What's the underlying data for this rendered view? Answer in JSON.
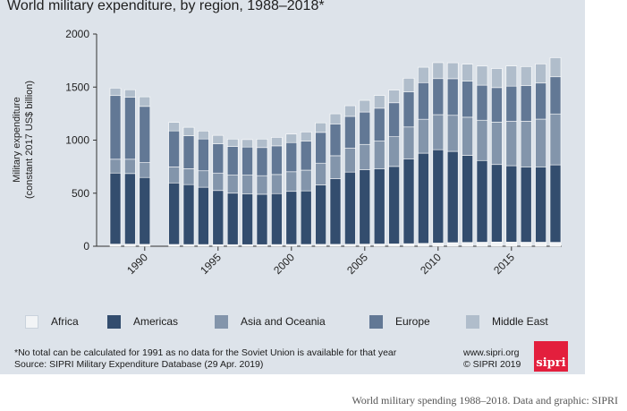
{
  "chart_data": {
    "type": "bar",
    "stacked": true,
    "title": "World military expenditure, by region, 1988–2018*",
    "ylabel_line1": "Military expenditure",
    "ylabel_line2": "(constant 2017 US$ billion)",
    "xlabel": "",
    "ylim": [
      0,
      2000
    ],
    "yticks": [
      0,
      500,
      1000,
      1500,
      2000
    ],
    "ytick_labels": [
      "0",
      "500",
      "1000",
      "1500",
      "2000"
    ],
    "xticks": [
      1990,
      1995,
      2000,
      2005,
      2010,
      2015
    ],
    "xtick_labels": [
      "1990",
      "1995",
      "2000",
      "2005",
      "2010",
      "2015"
    ],
    "grid": false,
    "legend_position": "bottom",
    "years": [
      1988,
      1989,
      1990,
      1991,
      1992,
      1993,
      1994,
      1995,
      1996,
      1997,
      1998,
      1999,
      2000,
      2001,
      2002,
      2003,
      2004,
      2005,
      2006,
      2007,
      2008,
      2009,
      2010,
      2011,
      2012,
      2013,
      2014,
      2015,
      2016,
      2017,
      2018
    ],
    "series": [
      {
        "name": "Africa",
        "color": "#f2f4f6",
        "values": [
          20,
          20,
          18,
          null,
          17,
          16,
          16,
          15,
          15,
          15,
          15,
          16,
          17,
          17,
          18,
          18,
          19,
          20,
          21,
          22,
          24,
          27,
          30,
          34,
          36,
          38,
          40,
          39,
          38,
          38,
          37
        ]
      },
      {
        "name": "Americas",
        "color": "#334d6e",
        "values": [
          670,
          665,
          630,
          null,
          580,
          565,
          540,
          510,
          485,
          480,
          475,
          480,
          500,
          505,
          560,
          620,
          680,
          700,
          710,
          730,
          800,
          850,
          880,
          860,
          820,
          770,
          730,
          720,
          710,
          710,
          730
        ]
      },
      {
        "name": "Asia and Oceania",
        "color": "#8395ab",
        "values": [
          130,
          135,
          140,
          null,
          150,
          150,
          155,
          165,
          170,
          175,
          175,
          180,
          185,
          195,
          205,
          215,
          225,
          240,
          260,
          280,
          300,
          320,
          330,
          340,
          360,
          380,
          400,
          420,
          430,
          450,
          480
        ]
      },
      {
        "name": "Europe",
        "color": "#627895",
        "values": [
          600,
          585,
          530,
          null,
          340,
          310,
          300,
          275,
          270,
          265,
          265,
          270,
          275,
          275,
          290,
          300,
          300,
          305,
          310,
          320,
          330,
          345,
          340,
          345,
          340,
          330,
          325,
          330,
          335,
          340,
          350
        ]
      },
      {
        "name": "Middle East",
        "color": "#b0bdcb",
        "values": [
          70,
          70,
          90,
          null,
          80,
          80,
          75,
          80,
          70,
          70,
          80,
          80,
          80,
          85,
          90,
          95,
          100,
          110,
          120,
          120,
          130,
          145,
          150,
          150,
          160,
          180,
          180,
          190,
          180,
          180,
          180
        ]
      }
    ]
  },
  "legend": {
    "africa": "Africa",
    "americas": "Americas",
    "asia": "Asia and Oceania",
    "europe": "Europe",
    "middle_east": "Middle East"
  },
  "footnote": {
    "line1": "*No total can be calculated for 1991 as no data for the Soviet Union is available for that year",
    "line2": "Source: SIPRI Military Expenditure Database (29 Apr. 2019)"
  },
  "credit": {
    "url": "www.sipri.org",
    "copyright": "© SIPRI 2019"
  },
  "logo_text": "sipri",
  "caption": "World military spending 1988–2018. Data and graphic: SIPRI"
}
